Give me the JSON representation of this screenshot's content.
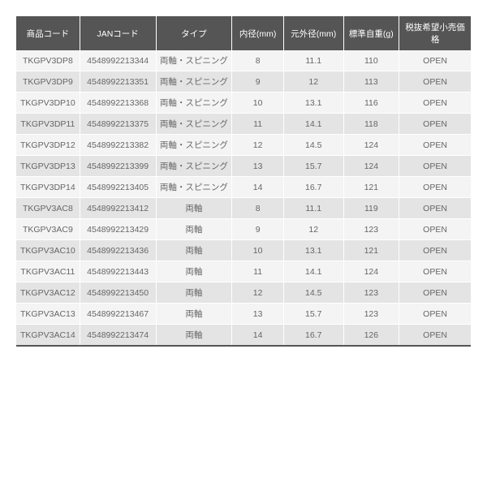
{
  "table": {
    "columns": [
      "商品コード",
      "JANコード",
      "タイプ",
      "内径(mm)",
      "元外径(mm)",
      "標準自重(g)",
      "税抜希望小売価格"
    ],
    "rows": [
      [
        "TKGPV3DP8",
        "4548992213344",
        "両軸・スピニング",
        "8",
        "11.1",
        "110",
        "OPEN"
      ],
      [
        "TKGPV3DP9",
        "4548992213351",
        "両軸・スピニング",
        "9",
        "12",
        "113",
        "OPEN"
      ],
      [
        "TKGPV3DP10",
        "4548992213368",
        "両軸・スピニング",
        "10",
        "13.1",
        "116",
        "OPEN"
      ],
      [
        "TKGPV3DP11",
        "4548992213375",
        "両軸・スピニング",
        "11",
        "14.1",
        "118",
        "OPEN"
      ],
      [
        "TKGPV3DP12",
        "4548992213382",
        "両軸・スピニング",
        "12",
        "14.5",
        "124",
        "OPEN"
      ],
      [
        "TKGPV3DP13",
        "4548992213399",
        "両軸・スピニング",
        "13",
        "15.7",
        "124",
        "OPEN"
      ],
      [
        "TKGPV3DP14",
        "4548992213405",
        "両軸・スピニング",
        "14",
        "16.7",
        "121",
        "OPEN"
      ],
      [
        "TKGPV3AC8",
        "4548992213412",
        "両軸",
        "8",
        "11.1",
        "119",
        "OPEN"
      ],
      [
        "TKGPV3AC9",
        "4548992213429",
        "両軸",
        "9",
        "12",
        "123",
        "OPEN"
      ],
      [
        "TKGPV3AC10",
        "4548992213436",
        "両軸",
        "10",
        "13.1",
        "121",
        "OPEN"
      ],
      [
        "TKGPV3AC11",
        "4548992213443",
        "両軸",
        "11",
        "14.1",
        "124",
        "OPEN"
      ],
      [
        "TKGPV3AC12",
        "4548992213450",
        "両軸",
        "12",
        "14.5",
        "123",
        "OPEN"
      ],
      [
        "TKGPV3AC13",
        "4548992213467",
        "両軸",
        "13",
        "15.7",
        "123",
        "OPEN"
      ],
      [
        "TKGPV3AC14",
        "4548992213474",
        "両軸",
        "14",
        "16.7",
        "126",
        "OPEN"
      ]
    ],
    "col_classes": [
      "col-code",
      "col-jan",
      "col-type",
      "col-id",
      "col-od",
      "col-wt",
      "col-price"
    ],
    "header_bg": "#555555",
    "header_fg": "#ffffff",
    "row_odd_bg": "#f4f4f4",
    "row_even_bg": "#e4e4e4"
  }
}
